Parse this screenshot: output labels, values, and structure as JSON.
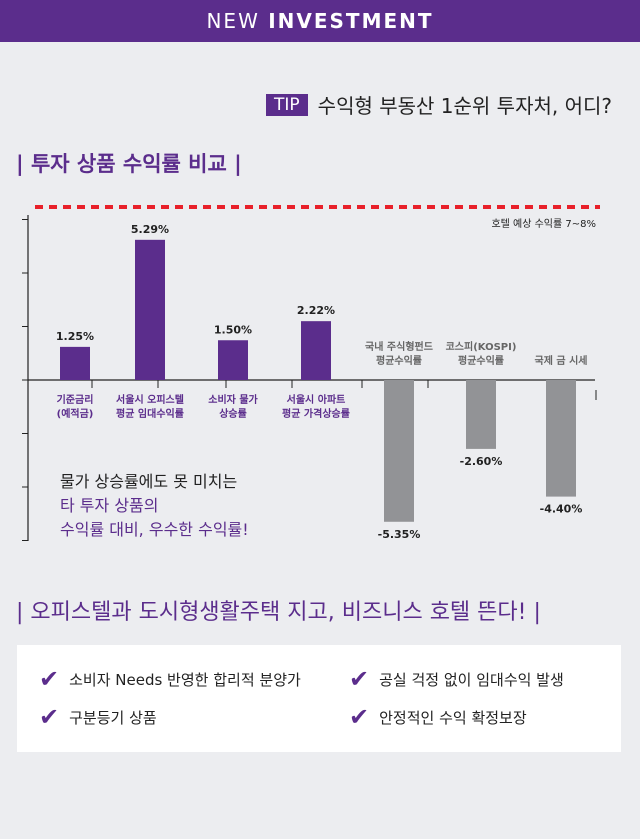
{
  "header": {
    "light": "NEW ",
    "bold": "INVESTMENT"
  },
  "tip": {
    "badge": "TIP",
    "text": "수익형 부동산 1순위 투자처, 어디?"
  },
  "section1_title": "| 투자 상품 수익률 비교 |",
  "section2_title": "| 오피스텔과 도시형생활주택 지고, 비즈니스 호텔 뜬다! |",
  "note": {
    "line1": "물가 상승률에도 못 미치는",
    "line2": "타 투자 상품의",
    "line3": "수익률 대비, 우수한 수익률!"
  },
  "chart_data": {
    "type": "bar",
    "reference_line": {
      "label": "호텔 예상 수익률 7~8%",
      "value": 7,
      "color": "#e8202a"
    },
    "categories": [
      "기준금리 (예적금)",
      "서울시 오피스텔 평균 임대수익률",
      "소비자 물가 상승률",
      "서울시 아파트 평균 가격상승률",
      "국내 주식형펀드 평균수익률",
      "코스피(KOSPI) 평균수익률",
      "국제 금 시세"
    ],
    "label_lines": [
      [
        "기준금리",
        "(예적금)"
      ],
      [
        "서울시 오피스텔",
        "평균 임대수익률"
      ],
      [
        "소비자 물가",
        "상승률"
      ],
      [
        "서울시 아파트",
        "평균 가격상승률"
      ],
      [
        "국내 주식형펀드",
        "평균수익률"
      ],
      [
        "코스피(KOSPI)",
        "평균수익률"
      ],
      [
        "국제 금 시세"
      ]
    ],
    "values": [
      1.25,
      5.29,
      1.5,
      2.22,
      -5.35,
      -2.6,
      -4.4
    ],
    "value_labels": [
      "1.25%",
      "5.29%",
      "1.50%",
      "2.22%",
      "-5.35%",
      "-2.60%",
      "-4.40%"
    ],
    "colors": {
      "positive": "#5b2d8c",
      "negative": "#929396"
    }
  },
  "features": [
    "소비자 Needs 반영한 합리적 분양가",
    "구분등기 상품",
    "공실 걱정 없이 임대수익 발생",
    "안정적인 수익 확정보장"
  ]
}
